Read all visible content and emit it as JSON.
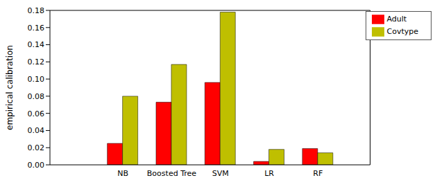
{
  "chart_data": {
    "type": "bar",
    "ylabel": "empirical calibration",
    "categories": [
      "NB",
      "Boosted Tree",
      "SVM",
      "LR",
      "RF"
    ],
    "series": [
      {
        "name": "Adult",
        "color": "#ff0000",
        "values": [
          0.025,
          0.073,
          0.096,
          0.004,
          0.019
        ]
      },
      {
        "name": "Covtype",
        "color": "#bfbf00",
        "values": [
          0.08,
          0.117,
          0.178,
          0.018,
          0.014
        ]
      }
    ],
    "ylim": [
      0,
      0.18
    ],
    "yticks": [
      {
        "value": 0,
        "label": "0.00"
      },
      0.02,
      0.04,
      0.06,
      0.08,
      {
        "value": 0.1,
        "label": "0.10"
      },
      0.12,
      0.14,
      0.16,
      0.18
    ],
    "legend": "upper right",
    "grid": false
  }
}
